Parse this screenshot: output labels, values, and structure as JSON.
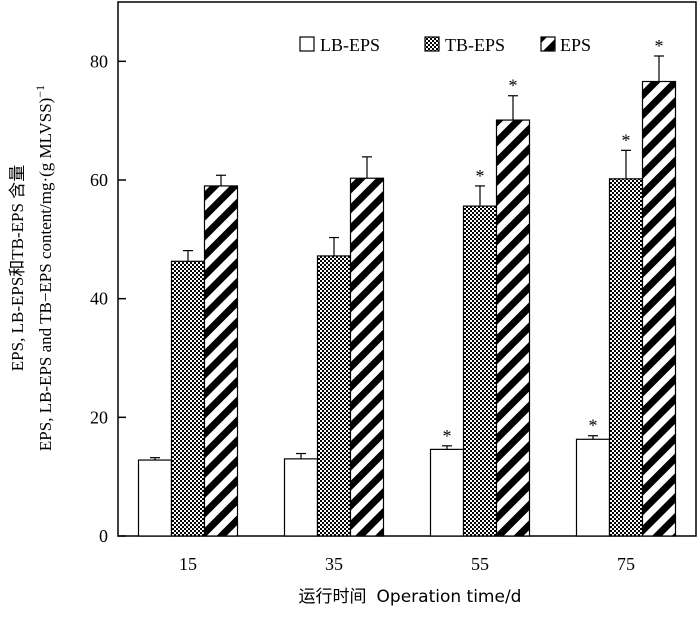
{
  "chart_data": {
    "type": "bar",
    "categories": [
      "15",
      "35",
      "55",
      "75"
    ],
    "series": [
      {
        "name": "LB-EPS",
        "pattern": "blank",
        "values": [
          12.8,
          13.0,
          14.6,
          16.3
        ],
        "errors": [
          0.4,
          0.9,
          0.6,
          0.6
        ],
        "significant": [
          false,
          false,
          true,
          true
        ]
      },
      {
        "name": "TB-EPS",
        "pattern": "dots",
        "values": [
          46.3,
          47.2,
          55.6,
          60.2
        ],
        "errors": [
          1.8,
          3.1,
          3.4,
          4.8
        ],
        "significant": [
          false,
          false,
          true,
          true
        ]
      },
      {
        "name": "EPS",
        "pattern": "stripes",
        "values": [
          59.0,
          60.3,
          70.1,
          76.6
        ],
        "errors": [
          1.8,
          3.6,
          4.1,
          4.3
        ],
        "significant": [
          false,
          false,
          true,
          true
        ]
      }
    ],
    "significance_marker": "*",
    "ylabel_line1": "EPS, LB-EPS和TB-EPS 含量",
    "ylabel_line2": "EPS, LB-EPS and TB−EPS content/mg·(g MLVSS)",
    "ylabel_superscript": "−1",
    "xlabel_cn": "运行时间",
    "xlabel_en": "Operation time/d",
    "ylim": [
      0,
      90
    ],
    "yticks": [
      0,
      20,
      40,
      60,
      80
    ],
    "legend_position": "top-right",
    "grid": false,
    "colors": {
      "ink": "#000000",
      "fill": "#ffffff"
    }
  }
}
